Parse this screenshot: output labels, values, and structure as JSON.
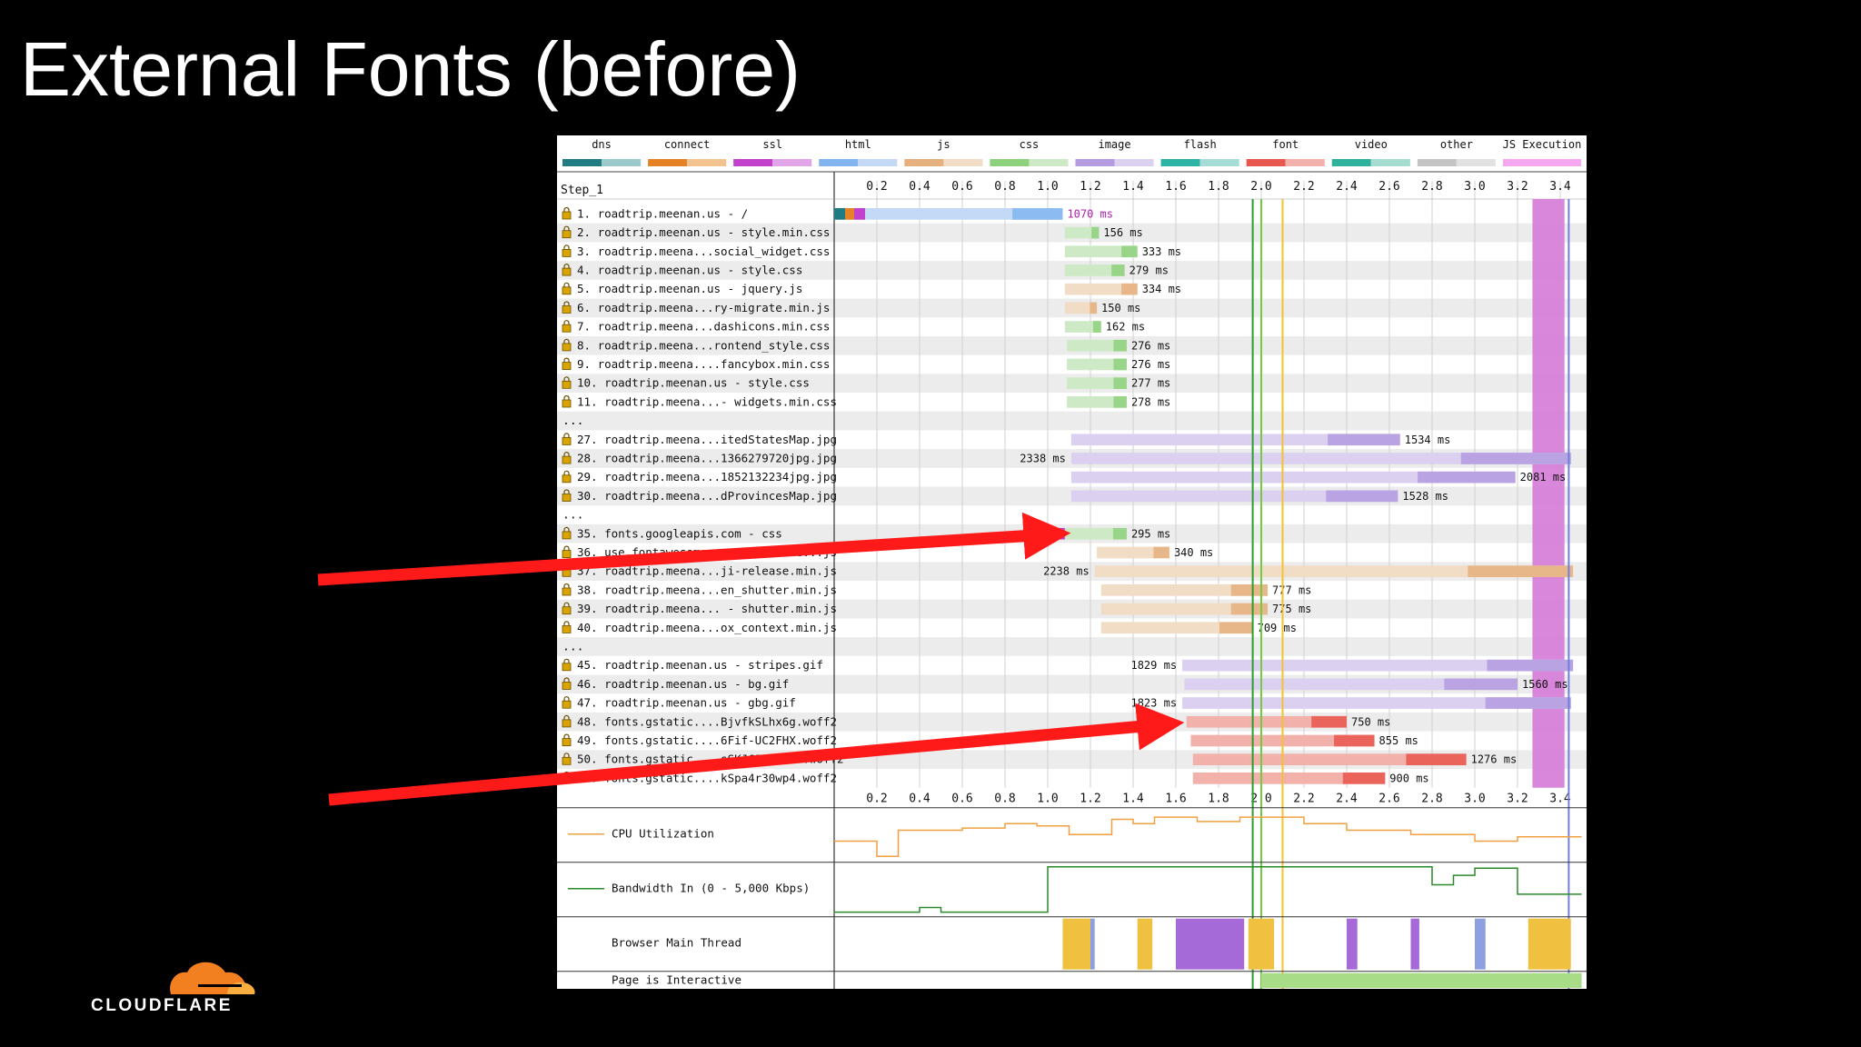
{
  "slide": {
    "title": "External Fonts (before)"
  },
  "brand": {
    "name": "CLOUDFLARE",
    "logo_icon": "cloud-icon",
    "orange": "#f38020",
    "orange_light": "#faae40"
  },
  "legend": [
    {
      "label": "dns",
      "color": "#1f7c83",
      "light": "#9cc9cb"
    },
    {
      "label": "connect",
      "color": "#e58226",
      "light": "#f3c38f"
    },
    {
      "label": "ssl",
      "color": "#c141cd",
      "light": "#e2a6e8"
    },
    {
      "label": "html",
      "color": "#82b5f0",
      "light": "#c4d9f5"
    },
    {
      "label": "js",
      "color": "#e5b07e",
      "light": "#f1dcc6"
    },
    {
      "label": "css",
      "color": "#8ed17c",
      "light": "#cde9c5"
    },
    {
      "label": "image",
      "color": "#b49be0",
      "light": "#dbd0ef"
    },
    {
      "label": "flash",
      "color": "#2db3a5",
      "light": "#a5dcd5"
    },
    {
      "label": "font",
      "color": "#e8574d",
      "light": "#f3b1ab"
    },
    {
      "label": "video",
      "color": "#2fb29b",
      "light": "#a6dccf"
    },
    {
      "label": "other",
      "color": "#c4c4c4",
      "light": "#e1e1e1"
    },
    {
      "label": "JS Execution",
      "color": "#f5a8f0",
      "light": "#f5a8f0"
    }
  ],
  "step_label": "Step_1",
  "timeline": {
    "ticks": [
      "0.2",
      "0.4",
      "0.6",
      "0.8",
      "1.0",
      "1.2",
      "1.4",
      "1.6",
      "1.8",
      "2.0",
      "2.2",
      "2.4",
      "2.6",
      "2.8",
      "3.0",
      "3.2",
      "3.4"
    ],
    "max_seconds": 3.5
  },
  "markers": {
    "start_render": {
      "t": 1.96,
      "color": "#2a9d2a"
    },
    "dom_interactive": {
      "t": 2.0,
      "color": "#6fce3f"
    },
    "dom_content_loaded": {
      "t": 2.1,
      "color": "#f2c230"
    },
    "js_execution_band": {
      "t1": 3.27,
      "t2": 3.42,
      "color": "#d681d9"
    },
    "onload": {
      "t": 3.44,
      "color": "#6f7ee0"
    }
  },
  "requests": [
    {
      "label": "1. roadtrip.meenan.us - /",
      "type": "html",
      "start": 0.0,
      "end": 1.07,
      "time": "1070 ms",
      "time_side": "right",
      "connect": true
    },
    {
      "label": "2. roadtrip.meenan.us - style.min.css",
      "type": "css",
      "start": 1.08,
      "end": 1.24,
      "time": "156 ms",
      "time_side": "right"
    },
    {
      "label": "3. roadtrip.meena...social_widget.css",
      "type": "css",
      "start": 1.08,
      "end": 1.42,
      "time": "333 ms",
      "time_side": "right"
    },
    {
      "label": "4. roadtrip.meenan.us - style.css",
      "type": "css",
      "start": 1.08,
      "end": 1.36,
      "time": "279 ms",
      "time_side": "right"
    },
    {
      "label": "5. roadtrip.meenan.us - jquery.js",
      "type": "js",
      "start": 1.08,
      "end": 1.42,
      "time": "334 ms",
      "time_side": "right"
    },
    {
      "label": "6. roadtrip.meena...ry-migrate.min.js",
      "type": "js",
      "start": 1.08,
      "end": 1.23,
      "time": "150 ms",
      "time_side": "right"
    },
    {
      "label": "7. roadtrip.meena...dashicons.min.css",
      "type": "css",
      "start": 1.08,
      "end": 1.25,
      "time": "162 ms",
      "time_side": "right"
    },
    {
      "label": "8. roadtrip.meena...rontend_style.css",
      "type": "css",
      "start": 1.09,
      "end": 1.37,
      "time": "276 ms",
      "time_side": "right"
    },
    {
      "label": "9. roadtrip.meena....fancybox.min.css",
      "type": "css",
      "start": 1.09,
      "end": 1.37,
      "time": "276 ms",
      "time_side": "right"
    },
    {
      "label": "10. roadtrip.meenan.us - style.css",
      "type": "css",
      "start": 1.09,
      "end": 1.37,
      "time": "277 ms",
      "time_side": "right"
    },
    {
      "label": "11. roadtrip.meena...- widgets.min.css",
      "type": "css",
      "start": 1.09,
      "end": 1.37,
      "time": "278 ms",
      "time_side": "right"
    },
    {
      "label": "...",
      "type": "gap"
    },
    {
      "label": "27. roadtrip.meena...itedStatesMap.jpg",
      "type": "image",
      "start": 1.11,
      "end": 2.65,
      "time": "1534 ms",
      "time_side": "right"
    },
    {
      "label": "28. roadtrip.meena...1366279720jpg.jpg",
      "type": "image",
      "start": 1.11,
      "end": 3.45,
      "time": "2338 ms",
      "time_side": "left"
    },
    {
      "label": "29. roadtrip.meena...1852132234jpg.jpg",
      "type": "image",
      "start": 1.11,
      "end": 3.19,
      "time": "2081 ms",
      "time_side": "right"
    },
    {
      "label": "30. roadtrip.meena...dProvincesMap.jpg",
      "type": "image",
      "start": 1.11,
      "end": 2.64,
      "time": "1528 ms",
      "time_side": "right"
    },
    {
      "label": "...",
      "type": "gap"
    },
    {
      "label": "35. fonts.googleapis.com - css",
      "type": "css",
      "start": 1.08,
      "end": 1.37,
      "time": "295 ms",
      "time_side": "right",
      "connect": true
    },
    {
      "label": "36. use.fontawesome.com - fontawe...js",
      "type": "js",
      "start": 1.23,
      "end": 1.57,
      "time": "340 ms",
      "time_side": "right"
    },
    {
      "label": "37. roadtrip.meena...ji-release.min.js",
      "type": "js",
      "start": 1.22,
      "end": 3.46,
      "time": "2238 ms",
      "time_side": "left"
    },
    {
      "label": "38. roadtrip.meena...en_shutter.min.js",
      "type": "js",
      "start": 1.25,
      "end": 2.03,
      "time": "777 ms",
      "time_side": "right"
    },
    {
      "label": "39. roadtrip.meena... - shutter.min.js",
      "type": "js",
      "start": 1.25,
      "end": 2.03,
      "time": "775 ms",
      "time_side": "right"
    },
    {
      "label": "40. roadtrip.meena...ox_context.min.js",
      "type": "js",
      "start": 1.25,
      "end": 1.96,
      "time": "709 ms",
      "time_side": "right"
    },
    {
      "label": "...",
      "type": "gap"
    },
    {
      "label": "45. roadtrip.meenan.us - stripes.gif",
      "type": "image",
      "start": 1.63,
      "end": 3.46,
      "time": "1829 ms",
      "time_side": "left"
    },
    {
      "label": "46. roadtrip.meenan.us - bg.gif",
      "type": "image",
      "start": 1.64,
      "end": 3.2,
      "time": "1560 ms",
      "time_side": "right"
    },
    {
      "label": "47. roadtrip.meenan.us - gbg.gif",
      "type": "image",
      "start": 1.63,
      "end": 3.45,
      "time": "1823 ms",
      "time_side": "left"
    },
    {
      "label": "48. fonts.gstatic....BjvfkSLhx6g.woff2",
      "type": "font",
      "start": 1.65,
      "end": 2.4,
      "time": "750 ms",
      "time_side": "right"
    },
    {
      "label": "49. fonts.gstatic....6Fif-UC2FHX.woff2",
      "type": "font",
      "start": 1.67,
      "end": 2.53,
      "time": "855 ms",
      "time_side": "right"
    },
    {
      "label": "50. fonts.gstatic....sSKJC2CzHfdc.woff2",
      "type": "font",
      "start": 1.68,
      "end": 2.96,
      "time": "1276 ms",
      "time_side": "right"
    },
    {
      "label": "51. fonts.gstatic....kSpa4r30wp4.woff2",
      "type": "font",
      "start": 1.68,
      "end": 2.58,
      "time": "900 ms",
      "time_side": "right"
    }
  ],
  "lower_panels": {
    "cpu_label": "CPU Utilization",
    "bandwidth_label": "Bandwidth In (0 - 5,000 Kbps)",
    "main_thread_label": "Browser Main Thread",
    "interactive_label": "Page is Interactive",
    "cpu_color": "#f0a040",
    "bandwidth_color": "#2a8a2a",
    "interactive_color": "#a8dc86",
    "interactive_from": 2.0
  },
  "annotations": [
    {
      "name": "arrow-to-googleapis-css",
      "color": "#ff1a1a"
    },
    {
      "name": "arrow-to-gstatic-fonts",
      "color": "#ff1a1a"
    }
  ]
}
